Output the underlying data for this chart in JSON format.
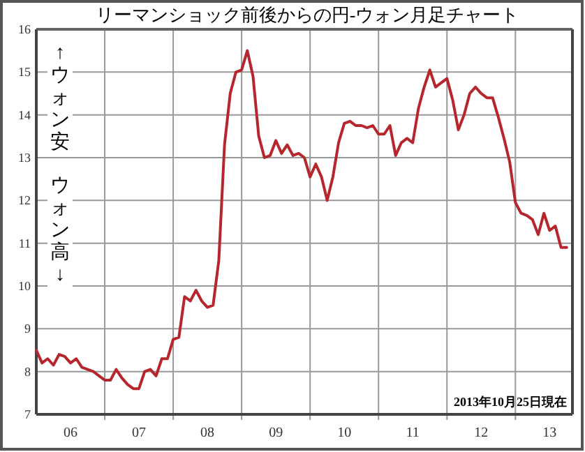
{
  "chart_data": {
    "type": "line",
    "title": "リーマンショック前後からの円-ウォン月足チャート",
    "x": [
      "2006-01",
      "2006-02",
      "2006-03",
      "2006-04",
      "2006-05",
      "2006-06",
      "2006-07",
      "2006-08",
      "2006-09",
      "2006-10",
      "2006-11",
      "2006-12",
      "2007-01",
      "2007-02",
      "2007-03",
      "2007-04",
      "2007-05",
      "2007-06",
      "2007-07",
      "2007-08",
      "2007-09",
      "2007-10",
      "2007-11",
      "2007-12",
      "2008-01",
      "2008-02",
      "2008-03",
      "2008-04",
      "2008-05",
      "2008-06",
      "2008-07",
      "2008-08",
      "2008-09",
      "2008-10",
      "2008-11",
      "2008-12",
      "2009-01",
      "2009-02",
      "2009-03",
      "2009-04",
      "2009-05",
      "2009-06",
      "2009-07",
      "2009-08",
      "2009-09",
      "2009-10",
      "2009-11",
      "2009-12",
      "2010-01",
      "2010-02",
      "2010-03",
      "2010-04",
      "2010-05",
      "2010-06",
      "2010-07",
      "2010-08",
      "2010-09",
      "2010-10",
      "2010-11",
      "2010-12",
      "2011-01",
      "2011-02",
      "2011-03",
      "2011-04",
      "2011-05",
      "2011-06",
      "2011-07",
      "2011-08",
      "2011-09",
      "2011-10",
      "2011-11",
      "2011-12",
      "2012-01",
      "2012-02",
      "2012-03",
      "2012-04",
      "2012-05",
      "2012-06",
      "2012-07",
      "2012-08",
      "2012-09",
      "2012-10",
      "2012-11",
      "2012-12",
      "2013-01",
      "2013-02",
      "2013-03",
      "2013-04",
      "2013-05",
      "2013-06",
      "2013-07",
      "2013-08",
      "2013-09",
      "2013-10"
    ],
    "series": [
      {
        "color": "#b5272d",
        "values": [
          8.5,
          8.2,
          8.3,
          8.15,
          8.4,
          8.35,
          8.2,
          8.3,
          8.1,
          8.05,
          8.0,
          7.9,
          7.8,
          7.8,
          8.05,
          7.85,
          7.7,
          7.6,
          7.6,
          8.0,
          8.05,
          7.9,
          8.3,
          8.3,
          8.75,
          8.8,
          9.75,
          9.65,
          9.9,
          9.65,
          9.5,
          9.55,
          10.6,
          13.3,
          14.5,
          15.0,
          15.05,
          15.5,
          14.9,
          13.5,
          13.0,
          13.05,
          13.4,
          13.1,
          13.3,
          13.05,
          13.1,
          13.0,
          12.55,
          12.85,
          12.55,
          12.0,
          12.55,
          13.35,
          13.8,
          13.85,
          13.75,
          13.75,
          13.7,
          13.75,
          13.55,
          13.55,
          13.75,
          13.05,
          13.35,
          13.45,
          13.35,
          14.15,
          14.65,
          15.05,
          14.65,
          14.75,
          14.85,
          14.35,
          13.65,
          14.0,
          14.5,
          14.65,
          14.5,
          14.4,
          14.4,
          13.95,
          13.45,
          12.9,
          11.95,
          11.7,
          11.65,
          11.55,
          11.2,
          11.7,
          11.3,
          11.4,
          10.9,
          10.9
        ]
      }
    ],
    "xlim": [
      "2006-01",
      "2013-11"
    ],
    "xticks": [
      {
        "value": "2006-07",
        "label": "06"
      },
      {
        "value": "2007-01",
        "label": null
      },
      {
        "value": "2007-07",
        "label": "07"
      },
      {
        "value": "2008-01",
        "label": null
      },
      {
        "value": "2008-07",
        "label": "08"
      },
      {
        "value": "2009-01",
        "label": null
      },
      {
        "value": "2009-07",
        "label": "09"
      },
      {
        "value": "2010-01",
        "label": null
      },
      {
        "value": "2010-07",
        "label": "10"
      },
      {
        "value": "2011-01",
        "label": null
      },
      {
        "value": "2011-07",
        "label": "11"
      },
      {
        "value": "2012-01",
        "label": null
      },
      {
        "value": "2012-07",
        "label": "12"
      },
      {
        "value": "2013-01",
        "label": null
      },
      {
        "value": "2013-07",
        "label": "13"
      }
    ],
    "ylim": [
      7,
      16
    ],
    "yticks": [
      7,
      8,
      9,
      10,
      11,
      12,
      13,
      14,
      15,
      16
    ],
    "grid": true,
    "annotations": [
      "↑ウォン安",
      "ウォン高↓",
      "2013年10月25日現在"
    ]
  }
}
